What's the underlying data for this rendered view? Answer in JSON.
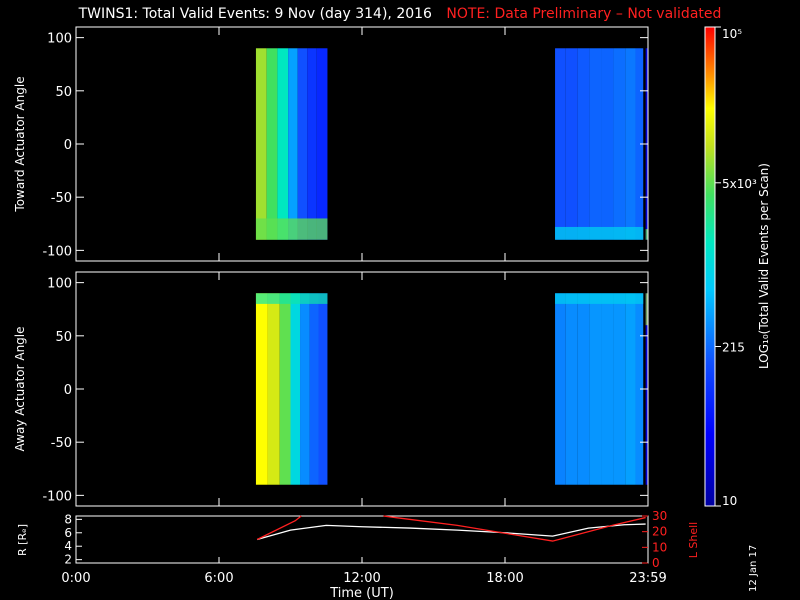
{
  "header": {
    "title": "TWINS1: Total Valid Events:  9 Nov (day 314), 2016",
    "note": "NOTE: Data Preliminary – Not validated"
  },
  "side_date": "12 Jan 17",
  "colors": {
    "background": "#000000",
    "axes": "#ffffff",
    "note": "#ff2020",
    "r_line": "#ffffff",
    "lshell_line": "#ff2020"
  },
  "chart_data": [
    {
      "type": "heatmap",
      "panel": "top",
      "ylabel": "Toward Actuator Angle",
      "ylim": [
        -110,
        110
      ],
      "yticks": [
        100,
        50,
        0,
        -50,
        -100
      ],
      "ytick_labels": [
        "100",
        "50",
        "0",
        "-50",
        "-100"
      ],
      "xlim_hours": [
        0,
        24
      ],
      "y_extent": [
        -90,
        90
      ],
      "blocks": [
        {
          "t_start": 7.55,
          "t_end": 10.55,
          "columns": [
            {
              "t": 7.8,
              "v": 3.9
            },
            {
              "t": 8.2,
              "v": 3.6
            },
            {
              "t": 8.7,
              "v": 3.2
            },
            {
              "t": 9.1,
              "v": 2.6
            },
            {
              "t": 9.5,
              "v": 2.2
            },
            {
              "t": 9.9,
              "v": 2.0
            },
            {
              "t": 10.3,
              "v": 1.9
            }
          ],
          "bottom_band": {
            "y_max": -70,
            "v": 3.7
          }
        },
        {
          "t_start": 20.1,
          "t_end": 23.8,
          "columns": [
            {
              "t": 20.3,
              "v": 2.2
            },
            {
              "t": 20.8,
              "v": 2.2
            },
            {
              "t": 21.3,
              "v": 2.25
            },
            {
              "t": 21.8,
              "v": 2.3
            },
            {
              "t": 22.3,
              "v": 2.3
            },
            {
              "t": 22.8,
              "v": 2.35
            },
            {
              "t": 23.3,
              "v": 2.4
            },
            {
              "t": 23.65,
              "v": 2.3
            }
          ],
          "bottom_band": {
            "y_max": -78,
            "v": 2.9
          }
        },
        {
          "t_start": 23.9,
          "t_end": 24.0,
          "columns": [
            {
              "t": 23.95,
              "v": 1.3
            }
          ],
          "bottom_band": {
            "y_max": -80,
            "v": 3.7
          }
        }
      ]
    },
    {
      "type": "heatmap",
      "panel": "bottom",
      "ylabel": "Away Actuator Angle",
      "ylim": [
        -110,
        110
      ],
      "yticks": [
        100,
        50,
        0,
        -50,
        -100
      ],
      "ytick_labels": [
        "100",
        "50",
        "0",
        "-50",
        "-100"
      ],
      "xlim_hours": [
        0,
        24
      ],
      "y_extent": [
        -90,
        90
      ],
      "blocks": [
        {
          "t_start": 7.55,
          "t_end": 10.55,
          "columns": [
            {
              "t": 7.8,
              "v": 4.3
            },
            {
              "t": 8.3,
              "v": 4.1
            },
            {
              "t": 8.8,
              "v": 3.7
            },
            {
              "t": 9.2,
              "v": 3.0
            },
            {
              "t": 9.6,
              "v": 2.5
            },
            {
              "t": 10.0,
              "v": 2.3
            },
            {
              "t": 10.35,
              "v": 2.2
            }
          ],
          "top_band": {
            "y_min": 80,
            "v": 3.3
          }
        },
        {
          "t_start": 20.1,
          "t_end": 23.8,
          "columns": [
            {
              "t": 20.3,
              "v": 2.45
            },
            {
              "t": 20.8,
              "v": 2.5
            },
            {
              "t": 21.3,
              "v": 2.5
            },
            {
              "t": 21.8,
              "v": 2.55
            },
            {
              "t": 22.3,
              "v": 2.55
            },
            {
              "t": 22.8,
              "v": 2.55
            },
            {
              "t": 23.3,
              "v": 2.6
            },
            {
              "t": 23.65,
              "v": 2.5
            }
          ],
          "top_band": {
            "y_min": 80,
            "v": 2.9
          }
        },
        {
          "t_start": 23.9,
          "t_end": 24.0,
          "columns": [
            {
              "t": 23.95,
              "v": 1.3
            }
          ],
          "top_band": {
            "y_min": 60,
            "v": 3.9
          }
        }
      ]
    },
    {
      "type": "line",
      "panel": "ephemeris",
      "ylabel_left": "R [Rₑ]",
      "ylabel_right": "L Shell",
      "left_ylim": [
        1.5,
        8.5
      ],
      "left_yticks": [
        2,
        4,
        6,
        8
      ],
      "left_ytick_labels": [
        "2",
        "4",
        "6",
        "8"
      ],
      "right_ylim": [
        0,
        30
      ],
      "right_yticks": [
        0,
        10,
        20,
        30
      ],
      "right_ytick_labels": [
        "0",
        "10",
        "20",
        "30"
      ],
      "series": [
        {
          "axis": "left",
          "color": "#ffffff",
          "x": [
            7.6,
            9.0,
            10.5,
            12.0,
            14.0,
            16.0,
            18.0,
            20.0,
            21.5,
            23.0,
            23.9
          ],
          "y": [
            5.0,
            6.4,
            7.1,
            6.9,
            6.7,
            6.4,
            6.0,
            5.5,
            6.7,
            7.2,
            7.3
          ]
        },
        {
          "axis": "right",
          "color": "#ff2020",
          "x": [
            7.6,
            9.2,
            9.45
          ],
          "y": [
            15,
            27,
            30
          ]
        },
        {
          "axis": "right",
          "color": "#ff2020",
          "x": [
            12.9,
            13.4,
            16.0,
            18.0,
            20.0,
            22.5,
            23.9
          ],
          "y": [
            30,
            29,
            24,
            19,
            14,
            24,
            29
          ]
        }
      ]
    }
  ],
  "x_axis": {
    "label": "Time (UT)",
    "ticks": [
      0,
      6,
      12,
      18,
      24
    ],
    "tick_labels": [
      "0:00",
      "6:00",
      "12:00",
      "18:00",
      "23:59"
    ]
  },
  "colorbar": {
    "label": "LOG₁₀(Total Valid Events per Scan)",
    "log_range": [
      1,
      5
    ],
    "tick_labels": [
      {
        "log_value": 5,
        "text": "10⁵"
      },
      {
        "log_value": 3.699,
        "text": "5x10³"
      },
      {
        "log_value": 2.332,
        "text": "215"
      },
      {
        "log_value": 1,
        "text": "10"
      }
    ]
  }
}
